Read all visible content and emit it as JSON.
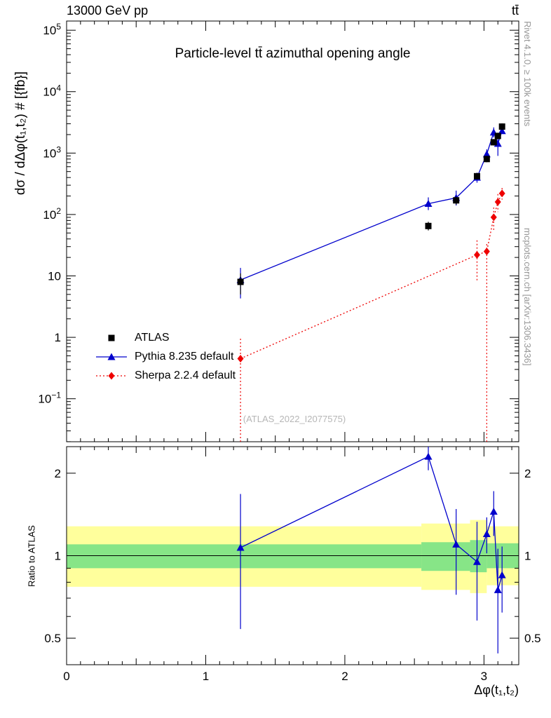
{
  "header": {
    "left": "13000 GeV pp",
    "right": "tt̄"
  },
  "side_notes": {
    "top_right": "Rivet 4.1.0, ≥ 100k events",
    "bottom_right": "mcplots.cern.ch [arXiv:1306.3436]"
  },
  "watermark": "(ATLAS_2022_I2077575)",
  "chart_data": {
    "type": "line",
    "title": "Particle-level tt̄ azimuthal opening angle",
    "xlabel": "Δφ(t₁,t₂)",
    "ylabel": "dσ / dΔφ(t₁,t₂) # [{fb}]",
    "ratio_ylabel": "Ratio to ATLAS",
    "grid": false,
    "legend_position": "middle-left",
    "xlim": [
      0,
      3.25
    ],
    "main_ylog_range": [
      -1.7,
      5.15
    ],
    "ratio_ylim": [
      0.4,
      2.5
    ],
    "x_major_ticks": [
      0,
      1,
      2,
      3
    ],
    "y_decades": [
      -1,
      0,
      1,
      2,
      3,
      4,
      5
    ],
    "ratio_ticks": [
      0.5,
      1,
      2
    ],
    "ratio_minor_ticks": [
      0.4,
      0.6,
      0.7,
      0.8,
      0.9
    ],
    "series": [
      {
        "name": "ATLAS",
        "color": "#000000",
        "marker": "square",
        "line": "none",
        "x": [
          1.25,
          2.6,
          2.8,
          2.95,
          3.02,
          3.07,
          3.1,
          3.13
        ],
        "y": [
          8,
          65,
          170,
          420,
          800,
          1500,
          1900,
          2700
        ],
        "y_lo": [
          5,
          55,
          145,
          370,
          710,
          1330,
          1680,
          2380
        ],
        "y_hi": [
          11,
          76,
          196,
          470,
          895,
          1690,
          2140,
          3050
        ]
      },
      {
        "name": "Pythia 8.235 default",
        "color": "#0000cc",
        "marker": "triangle",
        "line": "solid",
        "x": [
          1.25,
          2.6,
          2.8,
          2.95,
          3.02,
          3.07,
          3.1,
          3.13
        ],
        "y": [
          8.6,
          150,
          187,
          400,
          960,
          2175,
          1425,
          2295
        ],
        "y_lo": [
          4.3,
          118,
          140,
          330,
          800,
          1800,
          900,
          2100
        ],
        "y_hi": [
          13.5,
          190,
          245,
          480,
          1150,
          2620,
          2000,
          2520
        ]
      },
      {
        "name": "Sherpa 2.2.4 default",
        "color": "#ee0000",
        "marker": "diamond",
        "line": "dotted",
        "x": [
          1.25,
          2.95,
          3.02,
          3.07,
          3.1,
          3.13
        ],
        "y": [
          0.45,
          22,
          25,
          90,
          160,
          220
        ],
        "y_lo": [
          0.012,
          8,
          0.012,
          55,
          110,
          175
        ],
        "y_hi": [
          0.95,
          38,
          33,
          130,
          215,
          270
        ]
      }
    ],
    "ratio_series": [
      {
        "name": "Pythia 8.235 default",
        "x": [
          1.25,
          2.6,
          2.8,
          2.95,
          3.02,
          3.07,
          3.1,
          3.13
        ],
        "y": [
          1.07,
          2.3,
          1.1,
          0.95,
          1.2,
          1.45,
          0.75,
          0.85
        ],
        "y_lo": [
          0.54,
          2.05,
          0.72,
          0.58,
          1.02,
          1.18,
          0.44,
          0.62
        ],
        "y_hi": [
          1.68,
          2.5,
          1.48,
          1.33,
          1.38,
          1.72,
          1.06,
          1.08
        ]
      }
    ],
    "ratio_bands": {
      "yellow": {
        "color": "#ffff9c",
        "segments": [
          [
            0,
            2.55,
            0.77,
            1.28
          ],
          [
            2.55,
            2.9,
            0.75,
            1.31
          ],
          [
            2.9,
            3.02,
            0.73,
            1.35
          ],
          [
            3.02,
            3.25,
            0.78,
            1.28
          ]
        ]
      },
      "green": {
        "color": "#87e587",
        "segments": [
          [
            0,
            2.55,
            0.9,
            1.1
          ],
          [
            2.55,
            2.9,
            0.88,
            1.12
          ],
          [
            2.9,
            3.02,
            0.87,
            1.14
          ],
          [
            3.02,
            3.25,
            0.9,
            1.11
          ]
        ]
      }
    }
  }
}
